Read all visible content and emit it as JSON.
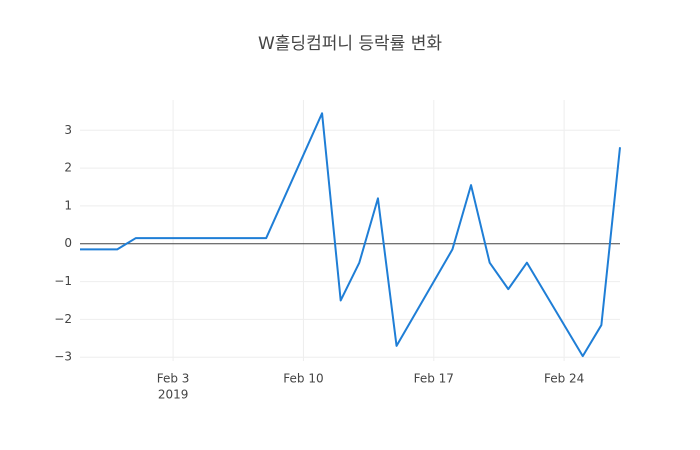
{
  "chart_data": {
    "type": "line",
    "title": "W홀딩컴퍼니 등락률 변화",
    "x": [
      "2019-01-29",
      "2019-01-30",
      "2019-01-31",
      "2019-02-01",
      "2019-02-07",
      "2019-02-08",
      "2019-02-11",
      "2019-02-12",
      "2019-02-13",
      "2019-02-14",
      "2019-02-15",
      "2019-02-18",
      "2019-02-19",
      "2019-02-20",
      "2019-02-21",
      "2019-02-22",
      "2019-02-25",
      "2019-02-26",
      "2019-02-27"
    ],
    "series": [
      {
        "name": "등락률",
        "color": "#1f7ed6",
        "values": [
          -0.15,
          -0.15,
          -0.15,
          0.15,
          0.15,
          0.15,
          3.45,
          -1.5,
          -0.5,
          1.2,
          -2.7,
          -0.15,
          1.55,
          -0.5,
          -1.2,
          -0.5,
          -2.97,
          -2.15,
          2.55
        ]
      }
    ],
    "xlim": [
      "2019-01-29",
      "2019-02-27"
    ],
    "xticks": [
      {
        "value": "2019-02-03",
        "label": [
          "Feb 3",
          "2019"
        ]
      },
      {
        "value": "2019-02-10",
        "label": [
          "Feb 10"
        ]
      },
      {
        "value": "2019-02-17",
        "label": [
          "Feb 17"
        ]
      },
      {
        "value": "2019-02-24",
        "label": [
          "Feb 24"
        ]
      }
    ],
    "ylim": [
      -3.1,
      3.8
    ],
    "yticks": [
      -3,
      -2,
      -1,
      0,
      1,
      2,
      3
    ],
    "ytick_labels": [
      "−3",
      "−2",
      "−1",
      "0",
      "1",
      "2",
      "3"
    ],
    "grid": true
  }
}
